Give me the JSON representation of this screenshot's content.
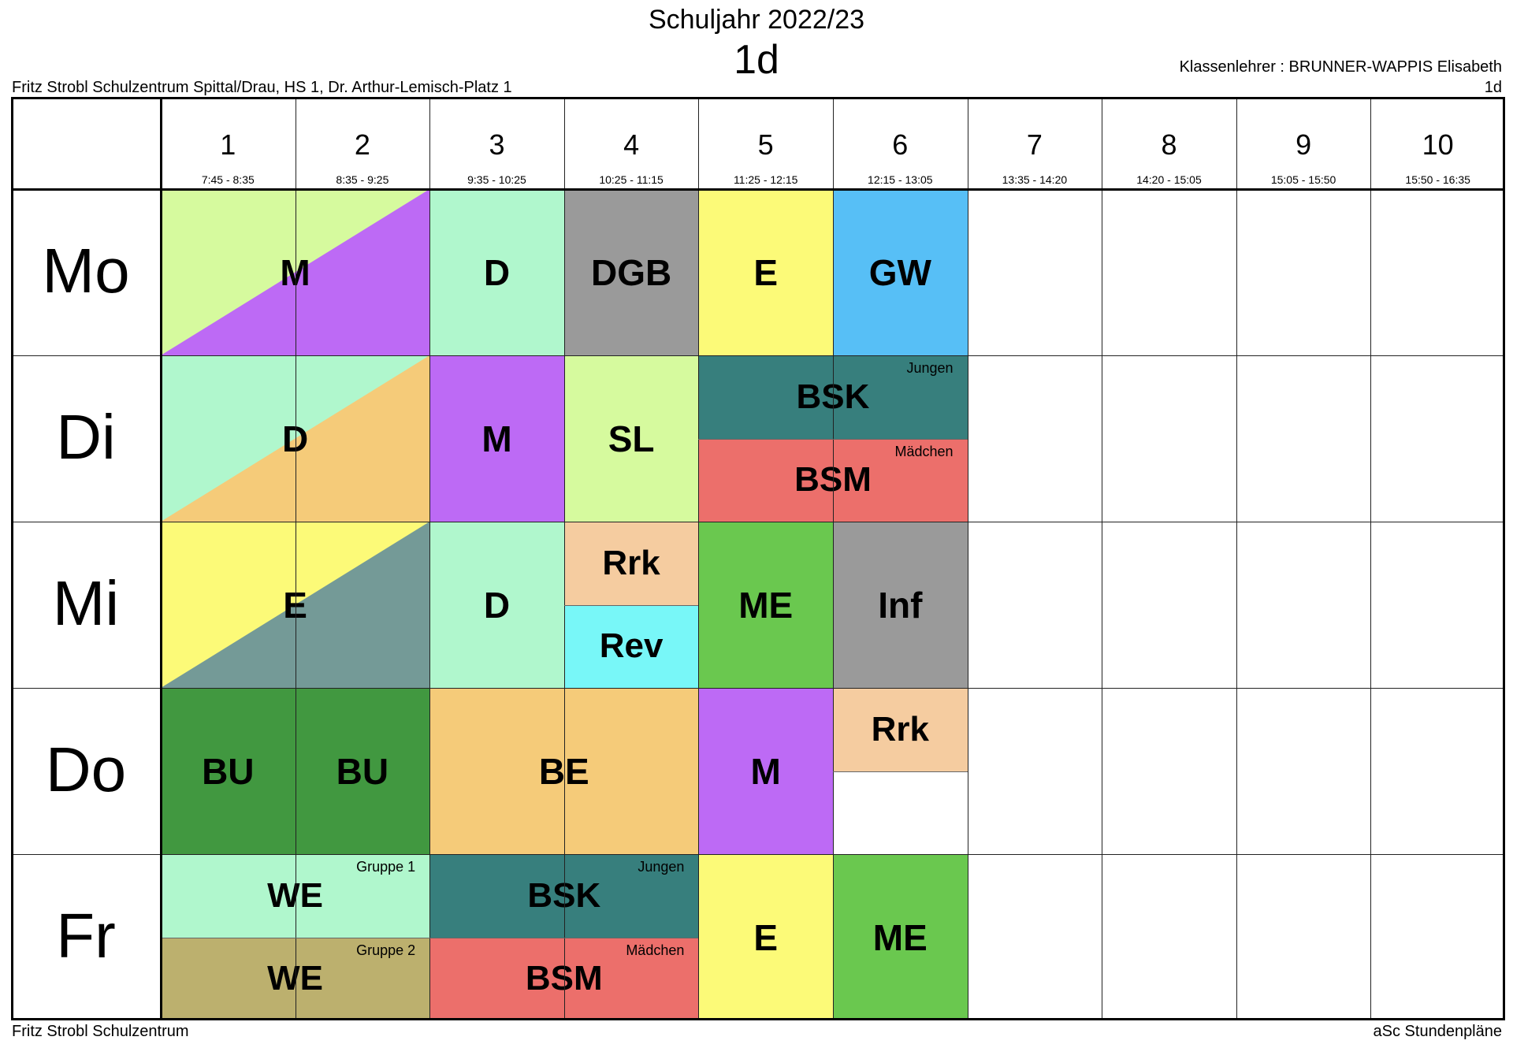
{
  "header": {
    "title": "Schuljahr 2022/23",
    "subtitle": "1d",
    "teacher": "Klassenlehrer : BRUNNER-WAPPIS Elisabeth",
    "class_code": "1d",
    "school_address": "Fritz Strobl Schulzentrum Spittal/Drau, HS 1, Dr. Arthur-Lemisch-Platz 1"
  },
  "footer": {
    "left": "Fritz Strobl Schulzentrum",
    "right": "aSc Stundenpläne"
  },
  "periods": [
    {
      "num": "1",
      "time": "7:45 - 8:35"
    },
    {
      "num": "2",
      "time": "8:35 - 9:25"
    },
    {
      "num": "3",
      "time": "9:35 - 10:25"
    },
    {
      "num": "4",
      "time": "10:25 - 11:15"
    },
    {
      "num": "5",
      "time": "11:25 - 12:15"
    },
    {
      "num": "6",
      "time": "12:15 - 13:05"
    },
    {
      "num": "7",
      "time": "13:35 - 14:20"
    },
    {
      "num": "8",
      "time": "14:20 - 15:05"
    },
    {
      "num": "9",
      "time": "15:05 - 15:50"
    },
    {
      "num": "10",
      "time": "15:50 - 16:35"
    }
  ],
  "days": [
    "Mo",
    "Di",
    "Mi",
    "Do",
    "Fr"
  ],
  "lessons": [
    {
      "day": 0,
      "period": 0,
      "span": 2,
      "part": "full",
      "label": "M",
      "color": "#d6fa9e",
      "color2": "#bd6af5",
      "split": "diagonal"
    },
    {
      "day": 0,
      "period": 2,
      "span": 1,
      "part": "full",
      "label": "D",
      "color": "#b0f7cd"
    },
    {
      "day": 0,
      "period": 3,
      "span": 1,
      "part": "full",
      "label": "DGB",
      "color": "#9a9a9a"
    },
    {
      "day": 0,
      "period": 4,
      "span": 1,
      "part": "full",
      "label": "E",
      "color": "#fcfa78"
    },
    {
      "day": 0,
      "period": 5,
      "span": 1,
      "part": "full",
      "label": "GW",
      "color": "#57bff6"
    },
    {
      "day": 1,
      "period": 0,
      "span": 2,
      "part": "full",
      "label": "D",
      "color": "#b0f7cd",
      "color2": "#f5cb79",
      "split": "diagonal"
    },
    {
      "day": 1,
      "period": 2,
      "span": 1,
      "part": "full",
      "label": "M",
      "color": "#bd6af5"
    },
    {
      "day": 1,
      "period": 3,
      "span": 1,
      "part": "full",
      "label": "SL",
      "color": "#d6fa9e"
    },
    {
      "day": 1,
      "period": 4,
      "span": 2,
      "part": "top",
      "label": "BSK",
      "group": "Jungen",
      "color": "#377f7d"
    },
    {
      "day": 1,
      "period": 4,
      "span": 2,
      "part": "bottom",
      "label": "BSM",
      "group": "Mädchen",
      "color": "#ec6f6b"
    },
    {
      "day": 2,
      "period": 0,
      "span": 2,
      "part": "full",
      "label": "E",
      "color": "#fcfa78",
      "color2": "#749a97",
      "split": "diagonal"
    },
    {
      "day": 2,
      "period": 2,
      "span": 1,
      "part": "full",
      "label": "D",
      "color": "#b0f7cd"
    },
    {
      "day": 2,
      "period": 3,
      "span": 1,
      "part": "top",
      "label": "Rrk",
      "color": "#f5cca0"
    },
    {
      "day": 2,
      "period": 3,
      "span": 1,
      "part": "bottom",
      "label": "Rev",
      "color": "#78f7f8"
    },
    {
      "day": 2,
      "period": 4,
      "span": 1,
      "part": "full",
      "label": "ME",
      "color": "#6ac84f"
    },
    {
      "day": 2,
      "period": 5,
      "span": 1,
      "part": "full",
      "label": "Inf",
      "color": "#9a9a9a"
    },
    {
      "day": 3,
      "period": 0,
      "span": 1,
      "part": "full",
      "label": "BU",
      "color": "#419840"
    },
    {
      "day": 3,
      "period": 1,
      "span": 1,
      "part": "full",
      "label": "BU",
      "color": "#419840"
    },
    {
      "day": 3,
      "period": 2,
      "span": 2,
      "part": "full",
      "label": "BE",
      "color": "#f5cb79"
    },
    {
      "day": 3,
      "period": 4,
      "span": 1,
      "part": "full",
      "label": "M",
      "color": "#bd6af5"
    },
    {
      "day": 3,
      "period": 5,
      "span": 1,
      "part": "top",
      "label": "Rrk",
      "color": "#f5cca0"
    },
    {
      "day": 4,
      "period": 0,
      "span": 2,
      "part": "top",
      "label": "WE",
      "group": "Gruppe 1",
      "color": "#b0f7cd"
    },
    {
      "day": 4,
      "period": 0,
      "span": 2,
      "part": "bottom",
      "label": "WE",
      "group": "Gruppe 2",
      "color": "#bcb06e"
    },
    {
      "day": 4,
      "period": 2,
      "span": 2,
      "part": "top",
      "label": "BSK",
      "group": "Jungen",
      "color": "#377f7d"
    },
    {
      "day": 4,
      "period": 2,
      "span": 2,
      "part": "bottom",
      "label": "BSM",
      "group": "Mädchen",
      "color": "#ec6f6b"
    },
    {
      "day": 4,
      "period": 4,
      "span": 1,
      "part": "full",
      "label": "E",
      "color": "#fcfa78"
    },
    {
      "day": 4,
      "period": 5,
      "span": 1,
      "part": "full",
      "label": "ME",
      "color": "#6ac84f"
    }
  ]
}
